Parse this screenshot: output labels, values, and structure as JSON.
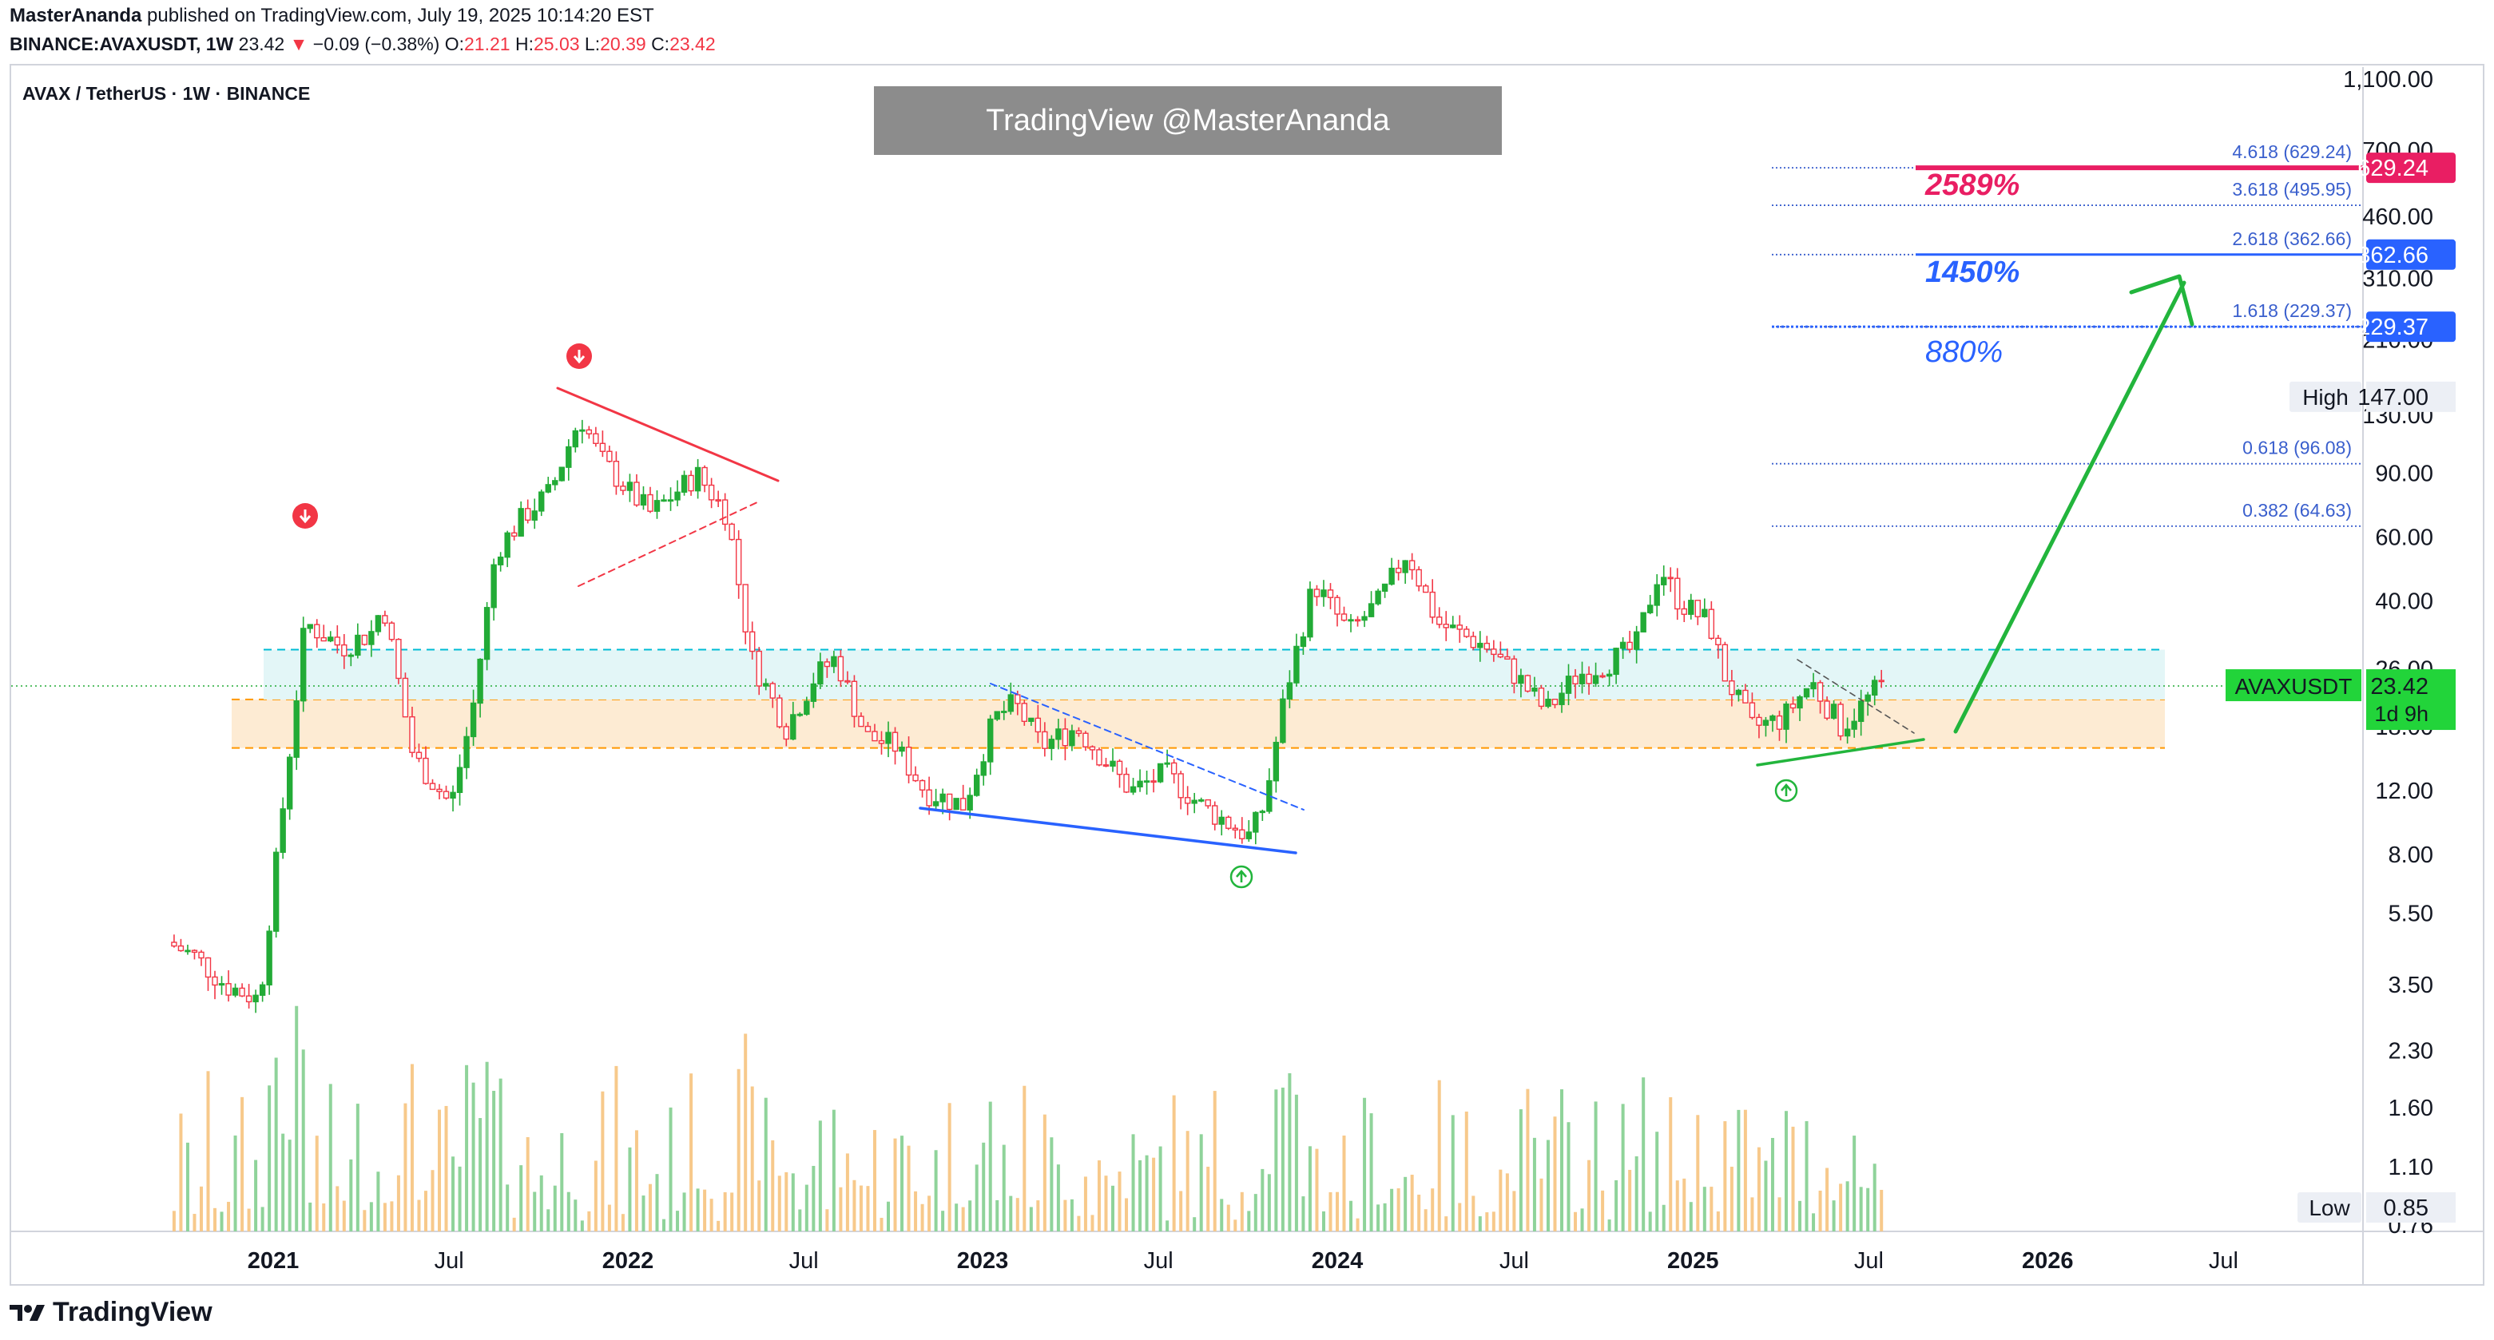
{
  "header": {
    "author": "MasterAnanda",
    "published": "published on TradingView.com, July 19, 2025 10:14:20 EST",
    "symbol_line": "BINANCE:AVAXUSDT, 1W",
    "last": "23.42",
    "arrow": "▼",
    "change": "−0.09 (−0.38%)",
    "o_label": "O:",
    "o": "21.21",
    "h_label": "H:",
    "h": "25.03",
    "l_label": "L:",
    "l": "20.39",
    "c_label": "C:",
    "c": "23.42"
  },
  "series_title": "AVAX / TetherUS · 1W · BINANCE",
  "watermark": "TradingView @MasterAnanda",
  "footer_logo": "TradingView",
  "colors": {
    "up": "#22ab36",
    "down": "#f23645",
    "pink": "#e91e63",
    "blue": "#2962ff",
    "fib_blue": "#3a5fcd",
    "green_arrow": "#22b53c",
    "orange": "#ff9800",
    "zone": "#fdebd3",
    "cyan": "#00bcd4"
  },
  "chart_data": {
    "type": "candlestick",
    "scale": "log",
    "ylim": [
      0.76,
      1100
    ],
    "y_ticks": [
      "1,100.00",
      "700.00",
      "460.00",
      "310.00",
      "210.00",
      "130.00",
      "90.00",
      "60.00",
      "40.00",
      "26.00",
      "18.00",
      "12.00",
      "8.00",
      "5.50",
      "3.50",
      "2.30",
      "1.60",
      "1.10",
      "0.76"
    ],
    "x_ticks": [
      {
        "label": "2021",
        "bold": true
      },
      {
        "label": "Jul",
        "bold": false
      },
      {
        "label": "2022",
        "bold": true
      },
      {
        "label": "Jul",
        "bold": false
      },
      {
        "label": "2023",
        "bold": true
      },
      {
        "label": "Jul",
        "bold": false
      },
      {
        "label": "2024",
        "bold": true
      },
      {
        "label": "Jul",
        "bold": false
      },
      {
        "label": "2025",
        "bold": true
      },
      {
        "label": "Jul",
        "bold": false
      },
      {
        "label": "2026",
        "bold": true
      },
      {
        "label": "Jul",
        "bold": false
      }
    ],
    "price_path": [
      [
        "2020-09-21",
        4.6
      ],
      [
        "2020-10-20",
        4.2
      ],
      [
        "2020-11-20",
        3.5
      ],
      [
        "2020-12-25",
        3.2
      ],
      [
        "2021-01-20",
        12
      ],
      [
        "2021-02-10",
        35
      ],
      [
        "2021-03-20",
        30
      ],
      [
        "2021-04-20",
        33
      ],
      [
        "2021-05-01",
        40
      ],
      [
        "2021-06-01",
        15
      ],
      [
        "2021-07-10",
        11
      ],
      [
        "2021-08-01",
        20
      ],
      [
        "2021-08-25",
        55
      ],
      [
        "2021-09-25",
        70
      ],
      [
        "2021-10-20",
        80
      ],
      [
        "2021-11-20",
        130
      ],
      [
        "2021-12-10",
        100
      ],
      [
        "2022-01-10",
        80
      ],
      [
        "2022-02-01",
        70
      ],
      [
        "2022-03-20",
        90
      ],
      [
        "2022-04-20",
        70
      ],
      [
        "2022-05-15",
        28
      ],
      [
        "2022-06-20",
        18
      ],
      [
        "2022-07-20",
        25
      ],
      [
        "2022-08-10",
        28
      ],
      [
        "2022-09-10",
        17
      ],
      [
        "2022-10-10",
        16
      ],
      [
        "2022-11-10",
        12
      ],
      [
        "2022-12-20",
        11
      ],
      [
        "2023-01-20",
        19
      ],
      [
        "2023-02-10",
        21
      ],
      [
        "2023-03-10",
        16
      ],
      [
        "2023-04-15",
        18
      ],
      [
        "2023-06-10",
        12
      ],
      [
        "2023-07-15",
        13.5
      ],
      [
        "2023-08-20",
        11
      ],
      [
        "2023-10-10",
        9
      ],
      [
        "2023-10-25",
        11
      ],
      [
        "2023-11-15",
        22
      ],
      [
        "2023-12-15",
        45
      ],
      [
        "2024-01-20",
        33
      ],
      [
        "2024-02-20",
        40
      ],
      [
        "2024-03-20",
        55
      ],
      [
        "2024-04-20",
        35
      ],
      [
        "2024-06-10",
        30
      ],
      [
        "2024-07-10",
        25
      ],
      [
        "2024-08-10",
        20
      ],
      [
        "2024-09-10",
        25
      ],
      [
        "2024-10-10",
        27
      ],
      [
        "2024-11-10",
        30
      ],
      [
        "2024-12-05",
        50
      ],
      [
        "2024-12-25",
        40
      ],
      [
        "2025-01-25",
        35
      ],
      [
        "2025-02-10",
        25
      ],
      [
        "2025-03-10",
        18
      ],
      [
        "2025-04-10",
        19
      ],
      [
        "2025-05-10",
        24
      ],
      [
        "2025-06-10",
        18
      ],
      [
        "2025-07-19",
        23.42
      ]
    ],
    "last_price": 23.42,
    "price_tag": {
      "label": "AVAXUSDT",
      "value": "23.42",
      "countdown": "1d 9h"
    },
    "high_tag": {
      "label": "High",
      "value": "147.00"
    },
    "low_tag": {
      "label": "Low",
      "value": "0.85"
    },
    "fib_levels": [
      {
        "ratio": "4.618",
        "value": 629.24,
        "label": "4.618 (629.24)",
        "tag": "629.24",
        "tag_color": "#e91e63"
      },
      {
        "ratio": "3.618",
        "value": 495.95,
        "label": "3.618 (495.95)"
      },
      {
        "ratio": "2.618",
        "value": 362.66,
        "label": "2.618 (362.66)",
        "tag": "362.66",
        "tag_color": "#2962ff"
      },
      {
        "ratio": "1.618",
        "value": 229.37,
        "label": "1.618 (229.37)",
        "tag": "229.37",
        "tag_color": "#2962ff"
      },
      {
        "ratio": "0.618",
        "value": 96.08,
        "label": "0.618 (96.08)"
      },
      {
        "ratio": "0.382",
        "value": 64.63,
        "label": "0.382 (64.63)"
      }
    ],
    "targets": [
      {
        "label": "2589%",
        "value": 629.24,
        "color": "#e91e63"
      },
      {
        "label": "1450%",
        "value": 362.66,
        "color": "#2962ff"
      },
      {
        "label": "880%",
        "value": 229.37,
        "color": "#2962ff"
      }
    ],
    "support_zone": {
      "low": 15.8,
      "high": 21.5
    },
    "resistance_line": 29.5,
    "annotations": [
      "bearish-signal 2021-05",
      "bearish-signal 2021-11",
      "bullish-signal 2023-10",
      "bullish-signal 2025-03",
      "projection arrow to 362.66"
    ]
  }
}
